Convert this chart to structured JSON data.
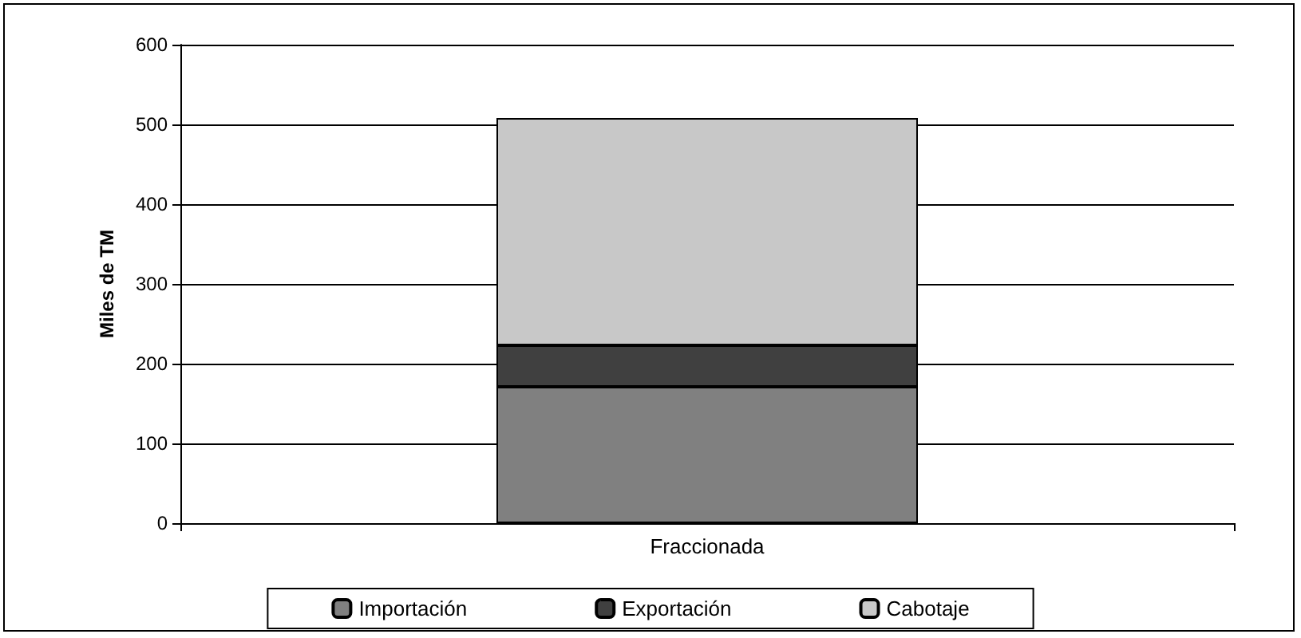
{
  "chart_data": {
    "type": "bar",
    "ylabel": "Miles de TM",
    "categories": [
      "Fraccionada"
    ],
    "stacked": true,
    "series": [
      {
        "name": "Importación",
        "color": "#808080",
        "values": [
          171
        ]
      },
      {
        "name": "Exportación",
        "color": "#404040",
        "values": [
          52
        ]
      },
      {
        "name": "Cabotaje",
        "color": "#c8c8c8",
        "values": [
          285
        ]
      }
    ],
    "ylim": [
      0,
      600
    ],
    "yticks": [
      0,
      100,
      200,
      300,
      400,
      500,
      600
    ],
    "grid": "y",
    "legend": "bottom"
  }
}
